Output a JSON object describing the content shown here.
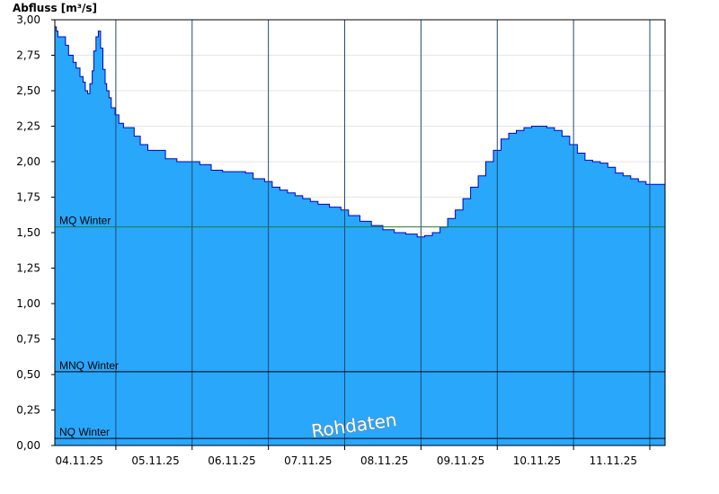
{
  "chart_data": {
    "type": "area",
    "ylabel": "Abfluss [m³/s]",
    "ylim": [
      0,
      3.0
    ],
    "yticks": [
      "0,00",
      "0,25",
      "0,50",
      "0,75",
      "1,00",
      "1,25",
      "1,50",
      "1,75",
      "2,00",
      "2,25",
      "2,50",
      "2,75",
      "3,00"
    ],
    "xlim": [
      3.7,
      11.7
    ],
    "x_tick_labels": [
      "04.11.25",
      "05.11.25",
      "06.11.25",
      "07.11.25",
      "08.11.25",
      "09.11.25",
      "10.11.25",
      "11.11.25"
    ],
    "grid": true,
    "watermark": "Rohdaten",
    "reference_lines": [
      {
        "label": "MQ Winter",
        "value": 1.54,
        "color": "#1e7a3a"
      },
      {
        "label": "MNQ Winter",
        "value": 0.52,
        "color": "#000000"
      },
      {
        "label": "NQ Winter",
        "value": 0.05,
        "color": "#000000"
      }
    ],
    "series": [
      {
        "color": "#29a7fb",
        "line_color": "#0000cc",
        "x": [
          3.7,
          3.72,
          3.74,
          3.78,
          3.84,
          3.88,
          3.94,
          3.98,
          4.03,
          4.07,
          4.1,
          4.13,
          4.16,
          4.19,
          4.21,
          4.24,
          4.27,
          4.3,
          4.33,
          4.36,
          4.38,
          4.41,
          4.44,
          4.49,
          4.54,
          4.6,
          4.66,
          4.74,
          4.82,
          4.92,
          5.0,
          5.15,
          5.3,
          5.45,
          5.6,
          5.75,
          5.9,
          6.05,
          6.2,
          6.3,
          6.45,
          6.55,
          6.65,
          6.75,
          6.85,
          6.95,
          7.05,
          7.15,
          7.3,
          7.45,
          7.55,
          7.7,
          7.85,
          8.0,
          8.15,
          8.3,
          8.45,
          8.55,
          8.65,
          8.75,
          8.85,
          8.95,
          9.05,
          9.15,
          9.25,
          9.35,
          9.45,
          9.55,
          9.65,
          9.75,
          9.85,
          9.95,
          10.05,
          10.15,
          10.25,
          10.35,
          10.45,
          10.55,
          10.65,
          10.75,
          10.85,
          10.95,
          11.05,
          11.15,
          11.25,
          11.35,
          11.45,
          11.55,
          11.7
        ],
        "y": [
          2.95,
          2.92,
          2.88,
          2.88,
          2.82,
          2.75,
          2.7,
          2.66,
          2.6,
          2.56,
          2.5,
          2.48,
          2.55,
          2.64,
          2.78,
          2.88,
          2.92,
          2.8,
          2.65,
          2.55,
          2.5,
          2.45,
          2.38,
          2.33,
          2.27,
          2.24,
          2.24,
          2.18,
          2.12,
          2.08,
          2.08,
          2.02,
          2.0,
          2.0,
          1.98,
          1.94,
          1.93,
          1.93,
          1.92,
          1.88,
          1.86,
          1.82,
          1.8,
          1.78,
          1.76,
          1.74,
          1.72,
          1.7,
          1.68,
          1.66,
          1.62,
          1.58,
          1.55,
          1.52,
          1.5,
          1.49,
          1.47,
          1.48,
          1.5,
          1.54,
          1.6,
          1.66,
          1.74,
          1.82,
          1.9,
          2.0,
          2.08,
          2.16,
          2.2,
          2.22,
          2.24,
          2.25,
          2.25,
          2.24,
          2.22,
          2.18,
          2.12,
          2.06,
          2.01,
          2.0,
          1.99,
          1.96,
          1.92,
          1.9,
          1.88,
          1.86,
          1.84,
          1.84,
          1.84
        ]
      }
    ]
  }
}
